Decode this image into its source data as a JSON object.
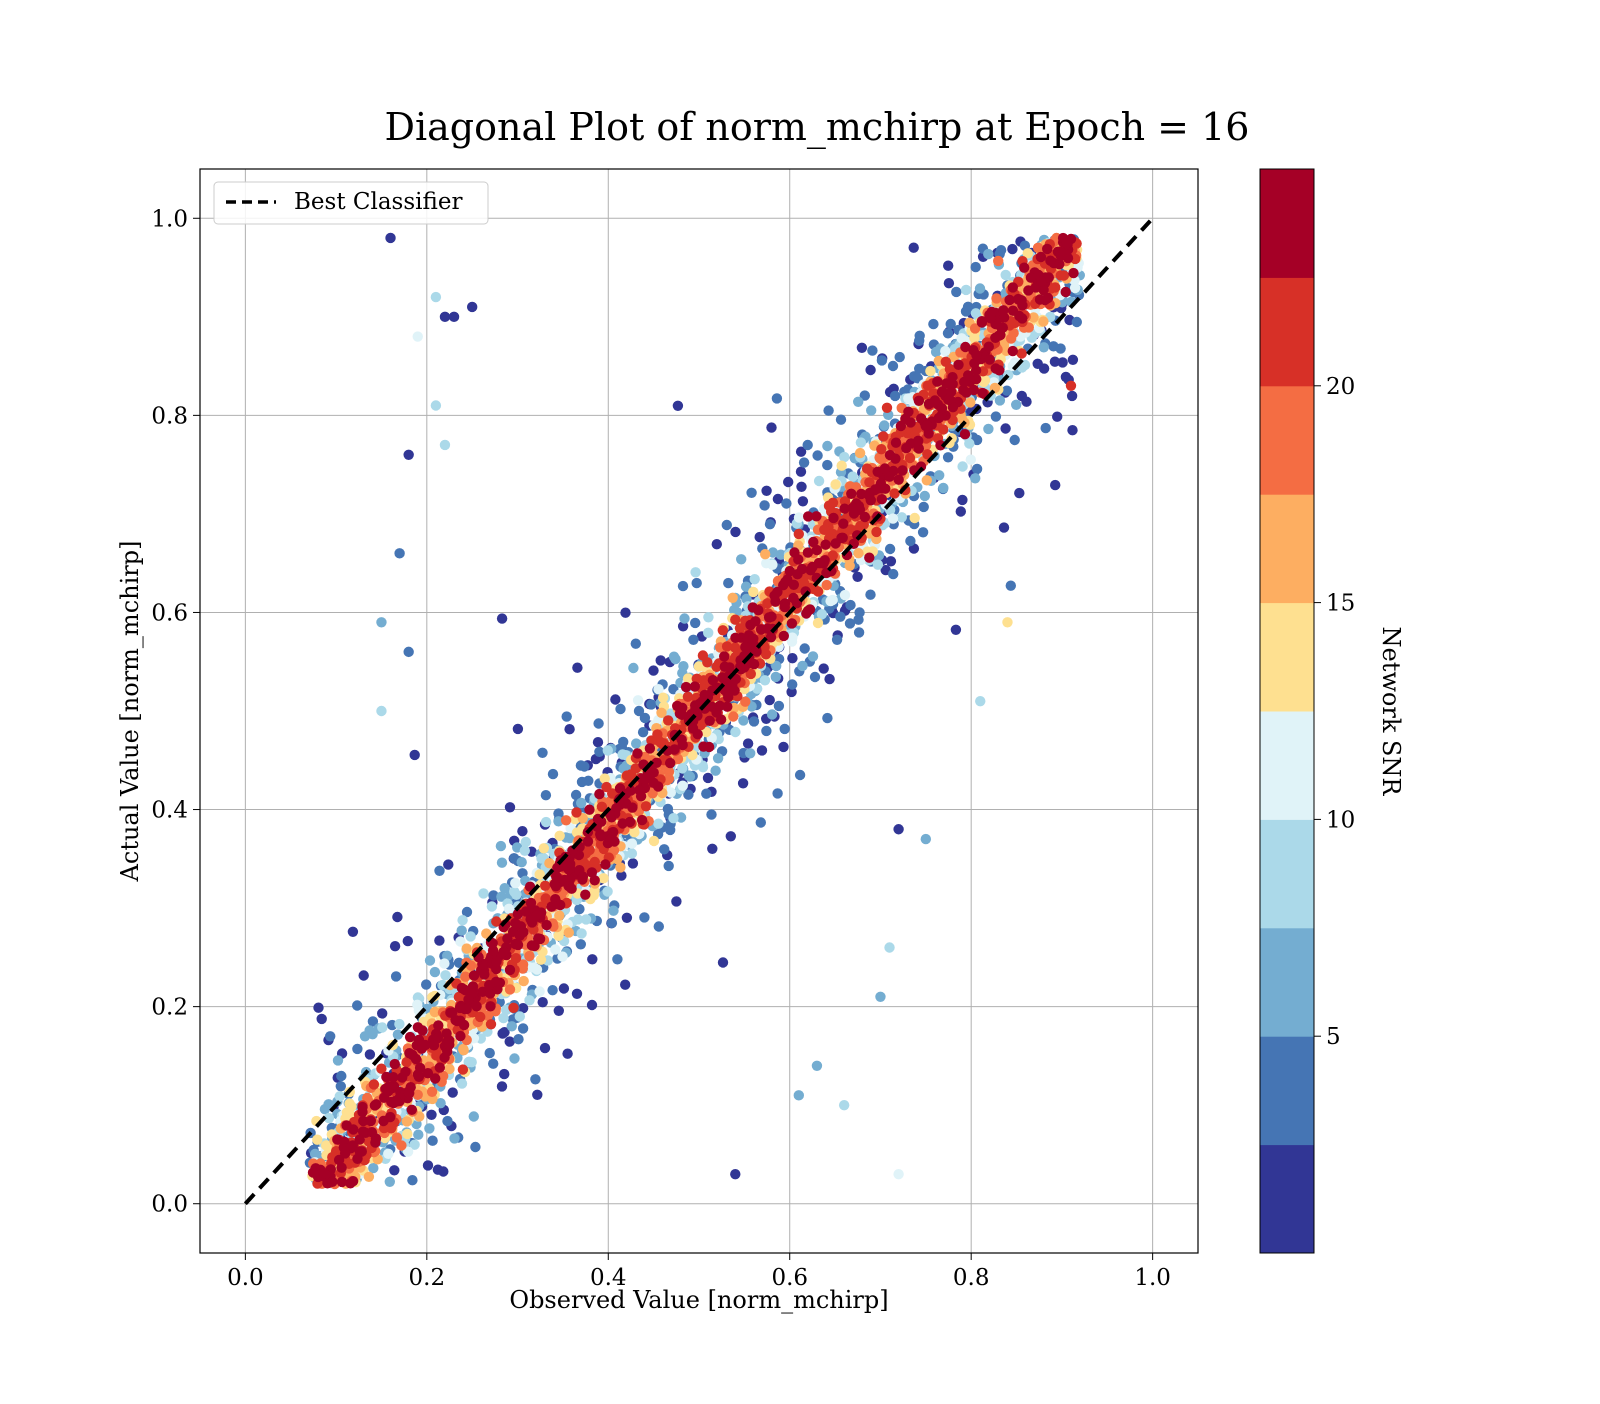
{
  "chart_data": {
    "type": "scatter",
    "title": "Diagonal Plot of norm_mchirp at Epoch = 16",
    "xlabel": "Observed Value [norm_mchirp]",
    "ylabel": "Actual Value [norm_mchirp]",
    "xlim": [
      -0.05,
      1.05
    ],
    "ylim": [
      -0.05,
      1.05
    ],
    "xticks": [
      "0.0",
      "0.2",
      "0.4",
      "0.6",
      "0.8",
      "1.0"
    ],
    "yticks": [
      "0.0",
      "0.2",
      "0.4",
      "0.6",
      "0.8",
      "1.0"
    ],
    "grid": true,
    "legend": {
      "placement": "upper-left",
      "entries": [
        "Best Classifier"
      ]
    },
    "reference_line": {
      "name": "Best Classifier",
      "x": [
        0.0,
        1.0
      ],
      "y": [
        0.0,
        1.0
      ],
      "style": "dashed",
      "color": "#000000"
    },
    "colorbar": {
      "label": "Network SNR",
      "range": [
        0,
        25
      ],
      "ticks": [
        "5",
        "10",
        "15",
        "20"
      ],
      "colors": [
        "#313695",
        "#4575b4",
        "#74add1",
        "#abd9e9",
        "#e0f3f8",
        "#fee090",
        "#fdae61",
        "#f46d43",
        "#d73027",
        "#a50026"
      ]
    },
    "points": [
      {
        "x": 0.16,
        "y": 0.98,
        "snr": 1
      },
      {
        "x": 0.22,
        "y": 0.9,
        "snr": 1
      },
      {
        "x": 0.23,
        "y": 0.9,
        "snr": 1
      },
      {
        "x": 0.18,
        "y": 0.76,
        "snr": 1
      },
      {
        "x": 0.17,
        "y": 0.66,
        "snr": 3
      },
      {
        "x": 0.18,
        "y": 0.56,
        "snr": 4
      },
      {
        "x": 0.15,
        "y": 0.59,
        "snr": 7
      },
      {
        "x": 0.15,
        "y": 0.5,
        "snr": 8
      },
      {
        "x": 0.21,
        "y": 0.92,
        "snr": 9
      },
      {
        "x": 0.19,
        "y": 0.88,
        "snr": 10
      },
      {
        "x": 0.21,
        "y": 0.81,
        "snr": 8
      },
      {
        "x": 0.22,
        "y": 0.77,
        "snr": 9
      },
      {
        "x": 0.25,
        "y": 0.91,
        "snr": 2
      },
      {
        "x": 0.75,
        "y": 0.37,
        "snr": 7
      },
      {
        "x": 0.72,
        "y": 0.38,
        "snr": 1
      },
      {
        "x": 0.7,
        "y": 0.21,
        "snr": 6
      },
      {
        "x": 0.71,
        "y": 0.26,
        "snr": 9
      },
      {
        "x": 0.66,
        "y": 0.1,
        "snr": 8
      },
      {
        "x": 0.63,
        "y": 0.14,
        "snr": 6
      },
      {
        "x": 0.81,
        "y": 0.51,
        "snr": 9
      },
      {
        "x": 0.84,
        "y": 0.59,
        "snr": 14
      },
      {
        "x": 0.91,
        "y": 0.83,
        "snr": 22
      },
      {
        "x": 0.61,
        "y": 0.11,
        "snr": 7
      },
      {
        "x": 0.54,
        "y": 0.03,
        "snr": 1
      },
      {
        "x": 0.72,
        "y": 0.03,
        "snr": 11
      }
    ]
  }
}
